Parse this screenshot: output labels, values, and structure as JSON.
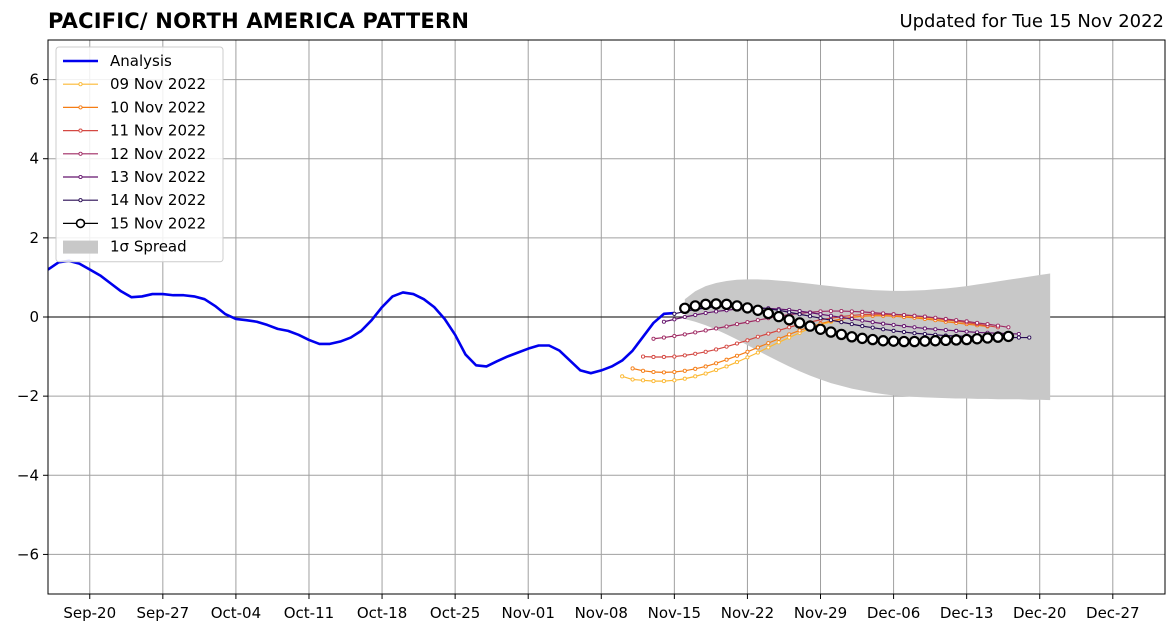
{
  "title": "PACIFIC/ NORTH AMERICA PATTERN",
  "updated": "Updated for Tue 15 Nov 2022",
  "chart_data": {
    "type": "line",
    "title": "PACIFIC/ NORTH AMERICA PATTERN",
    "xlabel": "",
    "ylabel": "",
    "x_axis": {
      "range": [
        "2022-09-16",
        "2023-01-01"
      ],
      "tick_dates": [
        "2022-09-20",
        "2022-09-27",
        "2022-10-04",
        "2022-10-11",
        "2022-10-18",
        "2022-10-25",
        "2022-11-01",
        "2022-11-08",
        "2022-11-15",
        "2022-11-22",
        "2022-11-29",
        "2022-12-06",
        "2022-12-13",
        "2022-12-20",
        "2022-12-27"
      ],
      "tick_labels": [
        "Sep-20",
        "Sep-27",
        "Oct-04",
        "Oct-11",
        "Oct-18",
        "Oct-25",
        "Nov-01",
        "Nov-08",
        "Nov-15",
        "Nov-22",
        "Nov-29",
        "Dec-06",
        "Dec-13",
        "Dec-20",
        "Dec-27"
      ]
    },
    "y_axis": {
      "range": [
        -7,
        7
      ],
      "ticks": [
        6,
        4,
        2,
        0,
        -2,
        -4,
        -6
      ],
      "tick_labels": [
        "6",
        "4",
        "2",
        "0",
        "−2",
        "−4",
        "−6"
      ]
    },
    "grid": true,
    "legend_position": "top-left",
    "zero_line": true,
    "analysis": {
      "name": "Analysis",
      "color": "#0000ee",
      "x": [
        "2022-09-16",
        "2022-09-17",
        "2022-09-18",
        "2022-09-19",
        "2022-09-20",
        "2022-09-21",
        "2022-09-22",
        "2022-09-23",
        "2022-09-24",
        "2022-09-25",
        "2022-09-26",
        "2022-09-27",
        "2022-09-28",
        "2022-09-29",
        "2022-09-30",
        "2022-10-01",
        "2022-10-02",
        "2022-10-03",
        "2022-10-04",
        "2022-10-05",
        "2022-10-06",
        "2022-10-07",
        "2022-10-08",
        "2022-10-09",
        "2022-10-10",
        "2022-10-11",
        "2022-10-12",
        "2022-10-13",
        "2022-10-14",
        "2022-10-15",
        "2022-10-16",
        "2022-10-17",
        "2022-10-18",
        "2022-10-19",
        "2022-10-20",
        "2022-10-21",
        "2022-10-22",
        "2022-10-23",
        "2022-10-24",
        "2022-10-25",
        "2022-10-26",
        "2022-10-27",
        "2022-10-28",
        "2022-10-29",
        "2022-10-30",
        "2022-10-31",
        "2022-11-01",
        "2022-11-02",
        "2022-11-03",
        "2022-11-04",
        "2022-11-05",
        "2022-11-06",
        "2022-11-07",
        "2022-11-08",
        "2022-11-09",
        "2022-11-10",
        "2022-11-11",
        "2022-11-12",
        "2022-11-13",
        "2022-11-14",
        "2022-11-15"
      ],
      "y": [
        1.2,
        1.38,
        1.42,
        1.35,
        1.2,
        1.05,
        0.85,
        0.65,
        0.5,
        0.52,
        0.58,
        0.58,
        0.55,
        0.55,
        0.52,
        0.45,
        0.28,
        0.07,
        -0.05,
        -0.08,
        -0.12,
        -0.2,
        -0.3,
        -0.35,
        -0.45,
        -0.58,
        -0.68,
        -0.68,
        -0.62,
        -0.52,
        -0.35,
        -0.08,
        0.25,
        0.52,
        0.62,
        0.58,
        0.45,
        0.25,
        -0.05,
        -0.45,
        -0.95,
        -1.22,
        -1.25,
        -1.12,
        -1.0,
        -0.9,
        -0.8,
        -0.72,
        -0.72,
        -0.85,
        -1.1,
        -1.35,
        -1.42,
        -1.35,
        -1.25,
        -1.1,
        -0.85,
        -0.5,
        -0.15,
        0.08,
        0.1
      ]
    },
    "forecast_series": [
      {
        "name": "09 Nov 2022",
        "color": "#fcb934",
        "start": "2022-11-10",
        "y": [
          -1.5,
          -1.58,
          -1.6,
          -1.62,
          -1.62,
          -1.6,
          -1.56,
          -1.5,
          -1.43,
          -1.34,
          -1.25,
          -1.14,
          -1.02,
          -0.9,
          -0.77,
          -0.64,
          -0.52,
          -0.4,
          -0.29,
          -0.2,
          -0.12,
          -0.06,
          -0.01,
          0.02,
          0.04,
          0.04,
          0.03,
          0.02,
          0.0,
          -0.02,
          -0.05,
          -0.08,
          -0.11,
          -0.14,
          -0.18
        ]
      },
      {
        "name": "10 Nov 2022",
        "color": "#f57d15",
        "start": "2022-11-11",
        "y": [
          -1.3,
          -1.36,
          -1.39,
          -1.4,
          -1.39,
          -1.36,
          -1.31,
          -1.25,
          -1.17,
          -1.08,
          -0.98,
          -0.88,
          -0.77,
          -0.66,
          -0.55,
          -0.44,
          -0.34,
          -0.25,
          -0.17,
          -0.1,
          -0.05,
          -0.01,
          0.02,
          0.03,
          0.03,
          0.02,
          0.0,
          -0.02,
          -0.05,
          -0.08,
          -0.12,
          -0.15,
          -0.18,
          -0.21,
          -0.24
        ]
      },
      {
        "name": "11 Nov 2022",
        "color": "#d44842",
        "start": "2022-11-12",
        "y": [
          -1.0,
          -1.01,
          -1.01,
          -1.0,
          -0.97,
          -0.93,
          -0.88,
          -0.82,
          -0.75,
          -0.67,
          -0.59,
          -0.5,
          -0.42,
          -0.34,
          -0.26,
          -0.19,
          -0.13,
          -0.07,
          -0.03,
          0.01,
          0.04,
          0.06,
          0.07,
          0.07,
          0.06,
          0.05,
          0.03,
          0.0,
          -0.03,
          -0.07,
          -0.1,
          -0.14,
          -0.18,
          -0.22,
          -0.26
        ]
      },
      {
        "name": "12 Nov 2022",
        "color": "#9f2a63",
        "start": "2022-11-13",
        "y": [
          -0.55,
          -0.52,
          -0.48,
          -0.44,
          -0.39,
          -0.34,
          -0.29,
          -0.24,
          -0.18,
          -0.13,
          -0.08,
          -0.03,
          0.02,
          0.06,
          0.09,
          0.12,
          0.14,
          0.15,
          0.15,
          0.14,
          0.13,
          0.11,
          0.09,
          0.07,
          0.05,
          0.03,
          0.01,
          -0.02,
          -0.05,
          -0.08,
          -0.11,
          -0.15,
          -0.18,
          -0.22,
          -0.26
        ]
      },
      {
        "name": "13 Nov 2022",
        "color": "#65156e",
        "start": "2022-11-14",
        "y": [
          -0.12,
          -0.06,
          0.0,
          0.05,
          0.1,
          0.14,
          0.17,
          0.2,
          0.21,
          0.22,
          0.22,
          0.2,
          0.18,
          0.15,
          0.11,
          0.07,
          0.03,
          -0.01,
          -0.05,
          -0.09,
          -0.13,
          -0.17,
          -0.2,
          -0.23,
          -0.26,
          -0.29,
          -0.31,
          -0.33,
          -0.35,
          -0.37,
          -0.39,
          -0.4,
          -0.41,
          -0.42,
          -0.43
        ]
      },
      {
        "name": "14 Nov 2022",
        "color": "#280b54",
        "start": "2022-11-15",
        "y": [
          0.08,
          0.14,
          0.19,
          0.23,
          0.26,
          0.27,
          0.27,
          0.26,
          0.24,
          0.21,
          0.17,
          0.12,
          0.07,
          0.02,
          -0.03,
          -0.08,
          -0.13,
          -0.18,
          -0.23,
          -0.27,
          -0.31,
          -0.35,
          -0.38,
          -0.41,
          -0.43,
          -0.45,
          -0.47,
          -0.48,
          -0.49,
          -0.5,
          -0.51,
          -0.51,
          -0.52,
          -0.52,
          -0.52
        ]
      },
      {
        "name": "15 Nov 2022",
        "color": "#000000",
        "start": "2022-11-16",
        "markers": "open-circle",
        "y": [
          0.22,
          0.28,
          0.32,
          0.33,
          0.32,
          0.28,
          0.23,
          0.17,
          0.09,
          0.01,
          -0.07,
          -0.15,
          -0.23,
          -0.31,
          -0.38,
          -0.44,
          -0.5,
          -0.54,
          -0.57,
          -0.6,
          -0.61,
          -0.62,
          -0.62,
          -0.61,
          -0.6,
          -0.59,
          -0.58,
          -0.57,
          -0.55,
          -0.53,
          -0.51,
          -0.49
        ]
      }
    ],
    "spread": {
      "name": "1σ Spread",
      "color": "#c8c8c8",
      "start": "2022-11-16",
      "upper": [
        0.45,
        0.65,
        0.78,
        0.86,
        0.91,
        0.94,
        0.95,
        0.95,
        0.94,
        0.92,
        0.9,
        0.87,
        0.84,
        0.81,
        0.78,
        0.75,
        0.72,
        0.7,
        0.68,
        0.67,
        0.66,
        0.66,
        0.67,
        0.68,
        0.7,
        0.72,
        0.75,
        0.78,
        0.82,
        0.86,
        0.9,
        0.94,
        0.98,
        1.02,
        1.06,
        1.1
      ],
      "lower": [
        -0.05,
        -0.12,
        -0.21,
        -0.32,
        -0.44,
        -0.57,
        -0.71,
        -0.85,
        -0.99,
        -1.12,
        -1.25,
        -1.37,
        -1.48,
        -1.58,
        -1.67,
        -1.74,
        -1.81,
        -1.86,
        -1.91,
        -1.95,
        -1.98,
        -2.0,
        -2.02,
        -2.03,
        -2.04,
        -2.05,
        -2.06,
        -2.06,
        -2.07,
        -2.07,
        -2.08,
        -2.08,
        -2.08,
        -2.09,
        -2.09,
        -2.1
      ]
    }
  }
}
